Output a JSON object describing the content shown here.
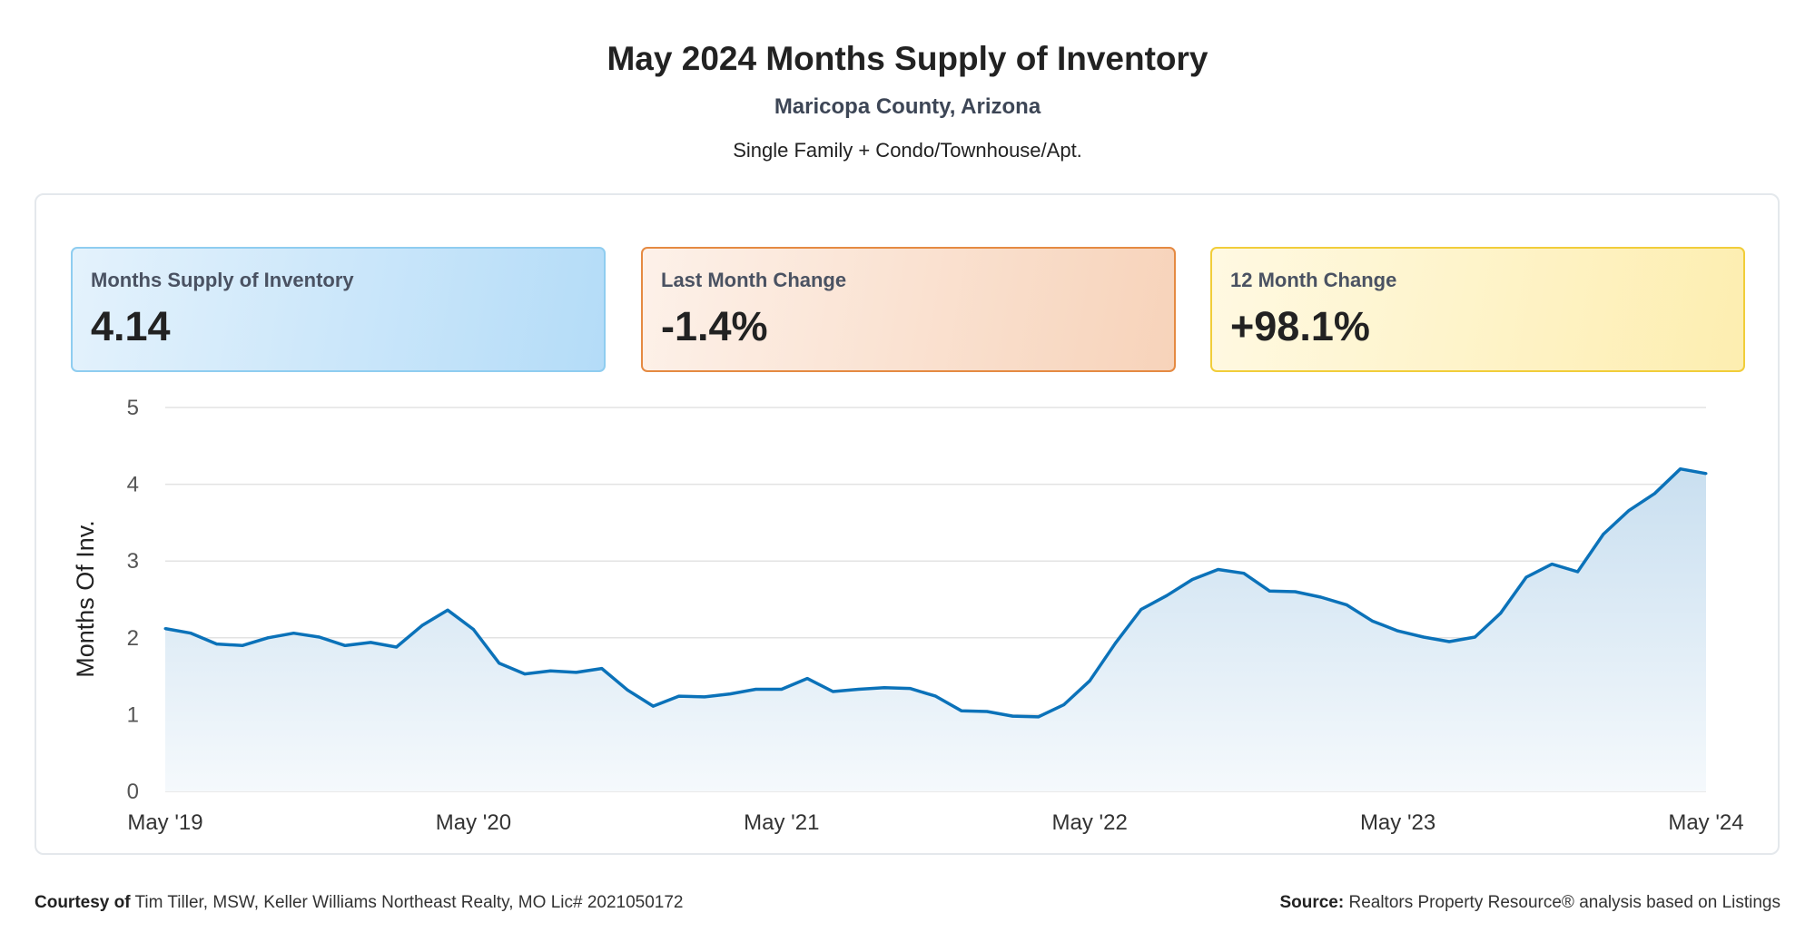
{
  "header": {
    "title": "May 2024 Months Supply of Inventory",
    "subtitle": "Maricopa County, Arizona",
    "description": "Single Family + Condo/Townhouse/Apt."
  },
  "kpis": [
    {
      "label": "Months Supply of Inventory",
      "value": "4.14"
    },
    {
      "label": "Last Month Change",
      "value": "-1.4%"
    },
    {
      "label": "12 Month Change",
      "value": "+98.1%"
    }
  ],
  "footer": {
    "courtesy_label": "Courtesy of",
    "courtesy_text": "Tim Tiller, MSW, Keller Williams Northeast Realty, MO Lic# 2021050172",
    "source_label": "Source:",
    "source_text": "Realtors Property Resource® analysis based on Listings"
  },
  "colors": {
    "line": "#0b72b9",
    "fill_top": "#c9dff0",
    "fill_bottom": "#f5f9fc",
    "grid": "#e3e3e3"
  },
  "chart_data": {
    "type": "area",
    "title": "May 2024 Months Supply of Inventory",
    "xlabel": "",
    "ylabel": "Months Of Inv.",
    "ylim": [
      0,
      5
    ],
    "yticks": [
      "0",
      "1",
      "2",
      "3",
      "4",
      "5"
    ],
    "xtick_labels": [
      "May '19",
      "May '20",
      "May '21",
      "May '22",
      "May '23",
      "May '24"
    ],
    "xtick_every": 12,
    "grid": true,
    "series": [
      {
        "name": "Months Supply of Inventory",
        "values": [
          2.12,
          2.06,
          1.92,
          1.9,
          2.0,
          2.06,
          2.01,
          1.9,
          1.94,
          1.88,
          2.16,
          2.36,
          2.11,
          1.67,
          1.53,
          1.57,
          1.55,
          1.6,
          1.32,
          1.11,
          1.24,
          1.23,
          1.27,
          1.33,
          1.33,
          1.47,
          1.3,
          1.33,
          1.35,
          1.34,
          1.24,
          1.05,
          1.04,
          0.98,
          0.97,
          1.13,
          1.44,
          1.93,
          2.37,
          2.55,
          2.76,
          2.89,
          2.84,
          2.61,
          2.6,
          2.53,
          2.43,
          2.22,
          2.09,
          2.01,
          1.95,
          2.01,
          2.32,
          2.79,
          2.96,
          2.86,
          3.35,
          3.66,
          3.88,
          4.2,
          4.14
        ]
      }
    ]
  }
}
